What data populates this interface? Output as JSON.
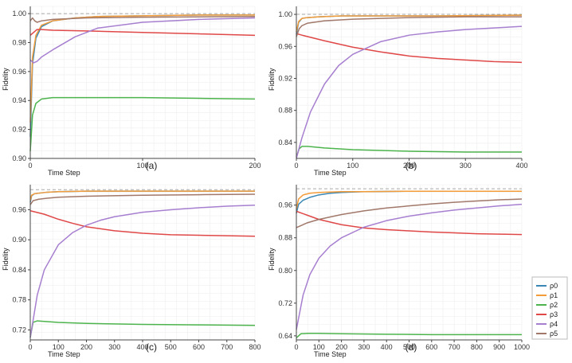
{
  "chart_data": [
    {
      "type": "line",
      "panel_label": "(a)",
      "xlabel": "Time Step",
      "ylabel": "Fidelity",
      "xlim": [
        0,
        200
      ],
      "ylim": [
        0.9,
        1.005
      ],
      "xticks": [
        0,
        100,
        200
      ],
      "yticks": [
        0.9,
        0.92,
        0.94,
        0.96,
        0.98,
        1.0
      ],
      "ytick_labels": [
        "0.90",
        "0.92",
        "0.94",
        "0.96",
        "0.98",
        "1.00"
      ],
      "reference_line": 1.0,
      "grid": true,
      "series": [
        {
          "name": "ρ0",
          "x": [
            0,
            2,
            5,
            10,
            20,
            40,
            60,
            100,
            150,
            200
          ],
          "values": [
            0.915,
            0.965,
            0.983,
            0.991,
            0.995,
            0.997,
            0.998,
            0.9985,
            0.999,
            0.999
          ]
        },
        {
          "name": "ρ1",
          "x": [
            0,
            2,
            5,
            10,
            20,
            40,
            60,
            100,
            150,
            200
          ],
          "values": [
            0.925,
            0.97,
            0.985,
            0.992,
            0.995,
            0.997,
            0.998,
            0.9985,
            0.999,
            0.999
          ]
        },
        {
          "name": "ρ2",
          "x": [
            0,
            2,
            5,
            10,
            20,
            40,
            100,
            150,
            200
          ],
          "values": [
            0.905,
            0.93,
            0.938,
            0.941,
            0.942,
            0.942,
            0.942,
            0.9415,
            0.941
          ]
        },
        {
          "name": "ρ3",
          "x": [
            0,
            3,
            6,
            10,
            20,
            50,
            100,
            150,
            200
          ],
          "values": [
            0.985,
            0.987,
            0.989,
            0.989,
            0.9885,
            0.988,
            0.987,
            0.986,
            0.985
          ]
        },
        {
          "name": "ρ4",
          "x": [
            0,
            3,
            6,
            10,
            20,
            40,
            60,
            100,
            150,
            200
          ],
          "values": [
            0.968,
            0.966,
            0.967,
            0.97,
            0.975,
            0.984,
            0.99,
            0.994,
            0.996,
            0.997
          ]
        },
        {
          "name": "ρ5",
          "x": [
            0,
            2,
            4,
            6,
            10,
            20,
            50,
            100,
            200
          ],
          "values": [
            0.995,
            0.997,
            0.995,
            0.994,
            0.995,
            0.996,
            0.997,
            0.9975,
            0.998
          ]
        }
      ]
    },
    {
      "type": "line",
      "panel_label": "(b)",
      "xlabel": "Time Step",
      "ylabel": "Fidelity",
      "xlim": [
        0,
        400
      ],
      "ylim": [
        0.82,
        1.01
      ],
      "xticks": [
        0,
        100,
        200,
        300,
        400
      ],
      "yticks": [
        0.84,
        0.88,
        0.92,
        0.96,
        1.0
      ],
      "ytick_labels": [
        "0.84",
        "0.88",
        "0.92",
        "0.96",
        "1.00"
      ],
      "reference_line": 1.0,
      "grid": true,
      "series": [
        {
          "name": "ρ0",
          "x": [
            0,
            4,
            10,
            20,
            40,
            80,
            150,
            250,
            400
          ],
          "values": [
            0.975,
            0.99,
            0.995,
            0.996,
            0.997,
            0.998,
            0.998,
            0.998,
            0.999
          ]
        },
        {
          "name": "ρ1",
          "x": [
            0,
            4,
            10,
            20,
            40,
            80,
            150,
            250,
            400
          ],
          "values": [
            0.978,
            0.991,
            0.995,
            0.996,
            0.997,
            0.998,
            0.998,
            0.998,
            0.999
          ]
        },
        {
          "name": "ρ2",
          "x": [
            0,
            5,
            10,
            20,
            50,
            100,
            200,
            300,
            400
          ],
          "values": [
            0.822,
            0.832,
            0.835,
            0.835,
            0.833,
            0.831,
            0.829,
            0.828,
            0.828
          ]
        },
        {
          "name": "ρ3",
          "x": [
            0,
            10,
            50,
            100,
            150,
            200,
            250,
            300,
            350,
            400
          ],
          "values": [
            0.976,
            0.974,
            0.967,
            0.959,
            0.953,
            0.948,
            0.945,
            0.943,
            0.941,
            0.94
          ]
        },
        {
          "name": "ρ4",
          "x": [
            0,
            10,
            25,
            50,
            75,
            100,
            150,
            200,
            250,
            300,
            350,
            400
          ],
          "values": [
            0.82,
            0.846,
            0.878,
            0.913,
            0.936,
            0.95,
            0.966,
            0.974,
            0.978,
            0.981,
            0.983,
            0.985
          ]
        },
        {
          "name": "ρ5",
          "x": [
            0,
            5,
            10,
            20,
            50,
            100,
            200,
            300,
            400
          ],
          "values": [
            0.972,
            0.982,
            0.986,
            0.989,
            0.992,
            0.994,
            0.996,
            0.997,
            0.997
          ]
        }
      ]
    },
    {
      "type": "line",
      "panel_label": "(c)",
      "xlabel": "Time Step",
      "ylabel": "Fidelity",
      "xlim": [
        0,
        800
      ],
      "ylim": [
        0.7,
        1.01
      ],
      "xticks": [
        0,
        100,
        200,
        300,
        400,
        500,
        600,
        700,
        800
      ],
      "yticks": [
        0.72,
        0.78,
        0.84,
        0.9,
        0.96
      ],
      "ytick_labels": [
        "0.72",
        "0.78",
        "0.84",
        "0.90",
        "0.96"
      ],
      "reference_line": 1.0,
      "grid": true,
      "series": [
        {
          "name": "ρ0",
          "x": [
            0,
            5,
            15,
            30,
            60,
            100,
            200,
            400,
            800
          ],
          "values": [
            0.975,
            0.988,
            0.992,
            0.993,
            0.995,
            0.996,
            0.997,
            0.997,
            0.997
          ]
        },
        {
          "name": "ρ1",
          "x": [
            0,
            5,
            15,
            30,
            60,
            100,
            200,
            400,
            800
          ],
          "values": [
            0.978,
            0.989,
            0.992,
            0.993,
            0.995,
            0.996,
            0.997,
            0.997,
            0.997
          ]
        },
        {
          "name": "ρ2",
          "x": [
            0,
            10,
            25,
            50,
            100,
            200,
            400,
            600,
            800
          ],
          "values": [
            0.705,
            0.735,
            0.738,
            0.737,
            0.735,
            0.733,
            0.731,
            0.73,
            0.729
          ]
        },
        {
          "name": "ρ3",
          "x": [
            0,
            50,
            100,
            150,
            200,
            300,
            400,
            500,
            600,
            700,
            800
          ],
          "values": [
            0.958,
            0.951,
            0.941,
            0.933,
            0.926,
            0.918,
            0.913,
            0.91,
            0.909,
            0.908,
            0.907
          ]
        },
        {
          "name": "ρ4",
          "x": [
            0,
            25,
            50,
            100,
            150,
            200,
            250,
            300,
            400,
            500,
            600,
            700,
            800
          ],
          "values": [
            0.705,
            0.79,
            0.84,
            0.89,
            0.914,
            0.929,
            0.939,
            0.946,
            0.955,
            0.96,
            0.964,
            0.967,
            0.969
          ]
        },
        {
          "name": "ρ5",
          "x": [
            0,
            10,
            30,
            60,
            100,
            200,
            400,
            600,
            800
          ],
          "values": [
            0.97,
            0.978,
            0.981,
            0.983,
            0.985,
            0.987,
            0.989,
            0.99,
            0.991
          ]
        }
      ]
    },
    {
      "type": "line",
      "panel_label": "(d)",
      "xlabel": "Time Step",
      "ylabel": "Fidelity",
      "xlim": [
        0,
        1000
      ],
      "ylim": [
        0.63,
        1.01
      ],
      "xticks": [
        0,
        100,
        200,
        300,
        400,
        500,
        600,
        700,
        800,
        900,
        1000
      ],
      "yticks": [
        0.64,
        0.72,
        0.8,
        0.88,
        0.96
      ],
      "ytick_labels": [
        "0.64",
        "0.72",
        "0.80",
        "0.88",
        "0.96"
      ],
      "reference_line": 1.0,
      "grid": true,
      "series": [
        {
          "name": "ρ0",
          "x": [
            0,
            10,
            30,
            60,
            100,
            150,
            200,
            300,
            500,
            1000
          ],
          "values": [
            0.94,
            0.962,
            0.972,
            0.979,
            0.985,
            0.989,
            0.991,
            0.993,
            0.994,
            0.994
          ]
        },
        {
          "name": "ρ1",
          "x": [
            0,
            10,
            30,
            60,
            100,
            200,
            300,
            500,
            1000
          ],
          "values": [
            0.95,
            0.975,
            0.985,
            0.989,
            0.991,
            0.993,
            0.993,
            0.994,
            0.994
          ]
        },
        {
          "name": "ρ2",
          "x": [
            0,
            20,
            50,
            100,
            200,
            400,
            600,
            800,
            1000
          ],
          "values": [
            0.635,
            0.645,
            0.646,
            0.646,
            0.645,
            0.644,
            0.643,
            0.643,
            0.643
          ]
        },
        {
          "name": "ρ3",
          "x": [
            0,
            50,
            100,
            200,
            300,
            400,
            500,
            600,
            700,
            800,
            900,
            1000
          ],
          "values": [
            0.945,
            0.935,
            0.925,
            0.912,
            0.904,
            0.9,
            0.897,
            0.894,
            0.892,
            0.89,
            0.889,
            0.888
          ]
        },
        {
          "name": "ρ4",
          "x": [
            0,
            30,
            60,
            100,
            150,
            200,
            300,
            400,
            500,
            600,
            700,
            800,
            900,
            1000
          ],
          "values": [
            0.655,
            0.74,
            0.79,
            0.83,
            0.86,
            0.88,
            0.906,
            0.922,
            0.933,
            0.941,
            0.948,
            0.953,
            0.958,
            0.962
          ]
        },
        {
          "name": "ρ5",
          "x": [
            0,
            50,
            100,
            200,
            300,
            400,
            500,
            600,
            700,
            800,
            900,
            1000
          ],
          "values": [
            0.905,
            0.917,
            0.925,
            0.937,
            0.946,
            0.953,
            0.958,
            0.963,
            0.967,
            0.97,
            0.973,
            0.975
          ]
        }
      ]
    }
  ],
  "legend": {
    "placement": "right",
    "entries": [
      {
        "name": "ρ0",
        "color": "#3a86b4"
      },
      {
        "name": "ρ1",
        "color": "#f39c3a"
      },
      {
        "name": "ρ2",
        "color": "#4db44d"
      },
      {
        "name": "ρ3",
        "color": "#e04848"
      },
      {
        "name": "ρ4",
        "color": "#a77fd0"
      },
      {
        "name": "ρ5",
        "color": "#a1786a"
      }
    ]
  },
  "colors": {
    "reference_line": "#aaaaaa",
    "grid": "#eeeeee",
    "axis": "#444444"
  }
}
